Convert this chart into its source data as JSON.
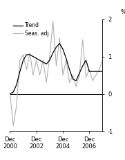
{
  "ylabel": "%",
  "ylim": [
    -1,
    2
  ],
  "yticks": [
    -1,
    0,
    1,
    2
  ],
  "ytick_labels": [
    "-1",
    "0",
    "1",
    "2"
  ],
  "xlim": [
    0,
    28
  ],
  "xtick_positions": [
    0,
    8,
    16,
    24
  ],
  "xtick_labels_top": [
    "Dec",
    "Dec",
    "Dec",
    "Dec"
  ],
  "xtick_labels_bottom": [
    "2000",
    "2002",
    "2004",
    "2006"
  ],
  "trend_color": "#000000",
  "seas_color": "#b0b0b0",
  "legend_entries": [
    "Trend",
    "Seas. adj."
  ],
  "trend_lw": 0.9,
  "seas_lw": 0.8,
  "trend_x": [
    0,
    1,
    2,
    3,
    4,
    5,
    6,
    7,
    8,
    9,
    10,
    11,
    12,
    13,
    14,
    15,
    16,
    17,
    18,
    19,
    20,
    21,
    22,
    23,
    24,
    25,
    26,
    27,
    28
  ],
  "trend_y": [
    0.0,
    0.05,
    0.25,
    0.6,
    0.9,
    1.05,
    1.05,
    1.0,
    0.95,
    0.9,
    0.85,
    0.8,
    0.9,
    1.1,
    1.25,
    1.35,
    1.2,
    0.95,
    0.65,
    0.4,
    0.35,
    0.55,
    0.75,
    0.9,
    0.6,
    0.6,
    0.6,
    0.6,
    0.6
  ],
  "seas_x": [
    0,
    1,
    2,
    3,
    4,
    5,
    6,
    7,
    8,
    9,
    10,
    11,
    12,
    13,
    14,
    15,
    16,
    17,
    18,
    19,
    20,
    21,
    22,
    23,
    24,
    25,
    26,
    27,
    28
  ],
  "seas_y": [
    0.0,
    -0.85,
    -0.3,
    0.9,
    1.05,
    0.65,
    1.1,
    0.5,
    0.9,
    0.5,
    0.9,
    0.3,
    1.0,
    1.95,
    0.75,
    1.5,
    0.5,
    0.9,
    0.3,
    0.5,
    0.2,
    0.5,
    1.45,
    0.45,
    0.65,
    0.35,
    0.5,
    0.65,
    0.9
  ],
  "legend_fontsize": 5.5,
  "tick_fontsize": 6,
  "ylabel_fontsize": 6.5
}
